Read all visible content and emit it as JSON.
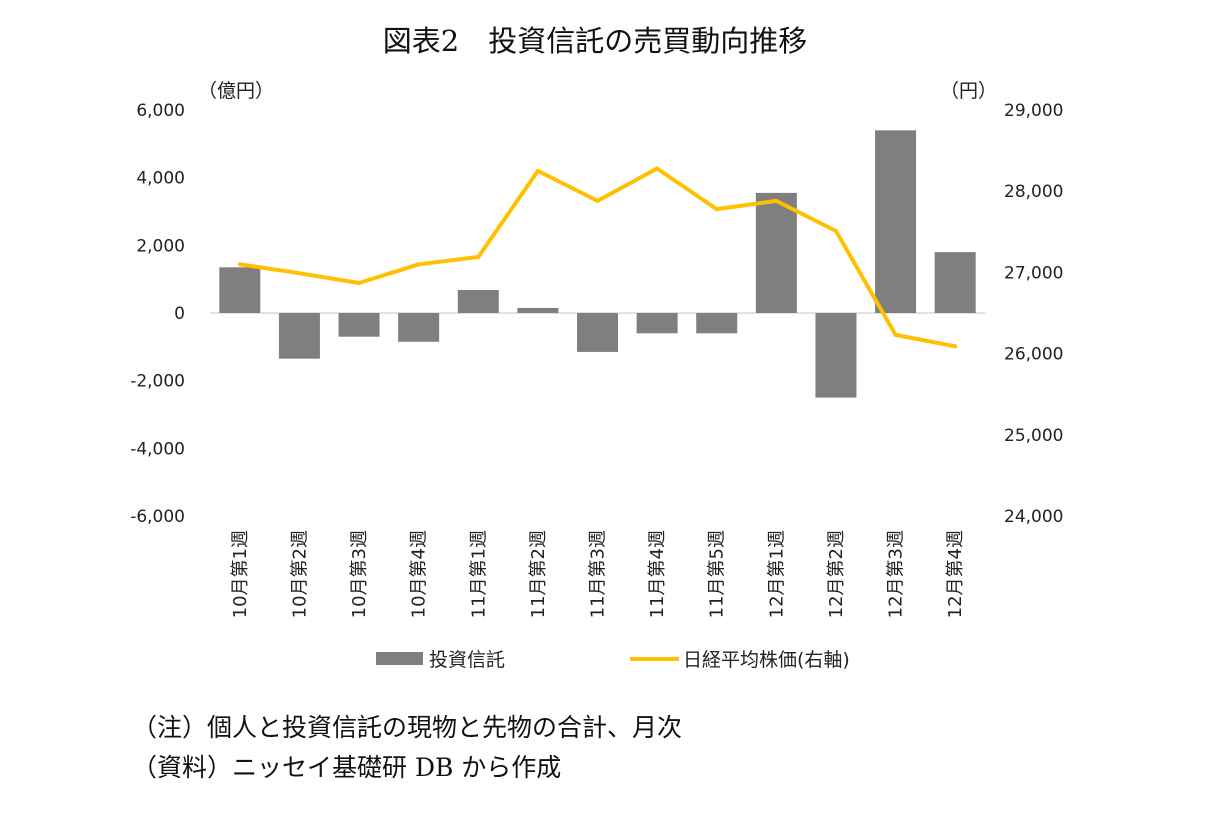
{
  "chart_data": {
    "type": "bar+line",
    "title": "図表2　投資信託の売買動向推移",
    "y_left_unit": "（億円）",
    "y_right_unit": "（円）",
    "y_left_ticks": [
      "6,000",
      "4,000",
      "2,000",
      "0",
      "-2,000",
      "-4,000",
      "-6,000"
    ],
    "y_right_ticks": [
      "29,000",
      "28,000",
      "27,000",
      "26,000",
      "25,000",
      "24,000"
    ],
    "ylim_left": [
      -6000,
      6000
    ],
    "ylim_right": [
      24000,
      29000
    ],
    "categories": [
      "10月第1週",
      "10月第2週",
      "10月第3週",
      "10月第4週",
      "11月第1週",
      "11月第2週",
      "11月第3週",
      "11月第4週",
      "11月第5週",
      "12月第1週",
      "12月第2週",
      "12月第3週",
      "12月第4週"
    ],
    "series": [
      {
        "name": "投資信託",
        "type": "bar",
        "axis": "left",
        "color": "#7f7f7f",
        "values": [
          1350,
          -1350,
          -700,
          -850,
          680,
          150,
          -1150,
          -600,
          -600,
          3550,
          -2500,
          5400,
          1800
        ]
      },
      {
        "name": "日経平均株価(右軸)",
        "type": "line",
        "axis": "right",
        "color": "#ffc000",
        "values": [
          27100,
          26990,
          26870,
          27100,
          27190,
          28250,
          27880,
          28280,
          27780,
          27880,
          27510,
          26230,
          26090
        ]
      }
    ],
    "grid": false,
    "legend_position": "bottom"
  },
  "notes": {
    "note1": "（注）個人と投資信託の現物と先物の合計、月次",
    "note2": "（資料）ニッセイ基礎研 DB から作成"
  }
}
